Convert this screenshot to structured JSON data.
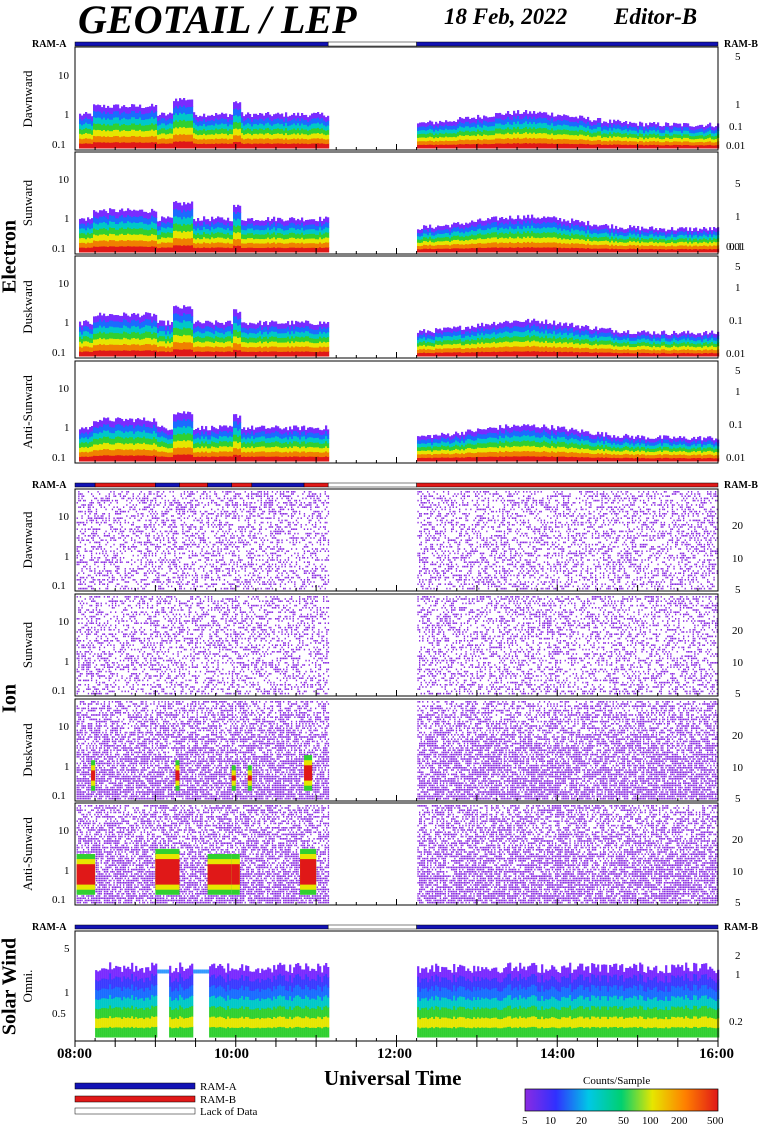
{
  "header": {
    "title": "GEOTAIL / LEP",
    "date": "18 Feb, 2022",
    "editor": "Editor-B"
  },
  "ram_labels": {
    "a": "RAM-A",
    "b": "RAM-B"
  },
  "groups": {
    "electron": "Electron",
    "ion": "Ion",
    "solar_wind": "Solar Wind"
  },
  "x_axis": {
    "title": "Universal Time",
    "ticks": [
      "08:00",
      "10:00",
      "12:00",
      "14:00",
      "16:00"
    ]
  },
  "legend": {
    "ram_a": "RAM-A",
    "ram_b": "RAM-B",
    "lack": "Lack of Data",
    "colors": {
      "ram_a": "#1212b4",
      "ram_b": "#e01818",
      "lack": "#ffffff"
    }
  },
  "colorbar": {
    "title": "Counts/Sample",
    "ticks": [
      "5",
      "10",
      "20",
      "50",
      "100",
      "200",
      "500"
    ]
  },
  "chart_data": {
    "type": "heatmap",
    "x_range_hours": [
      8,
      16
    ],
    "data_gap": [
      11.15,
      12.25
    ],
    "ram_bars": {
      "electron": [
        {
          "from": 8,
          "to": 11.15,
          "mode": "RAM-A"
        },
        {
          "from": 11.15,
          "to": 12.25,
          "mode": "Lack of Data"
        },
        {
          "from": 12.25,
          "to": 16,
          "mode": "RAM-A"
        }
      ],
      "ion": [
        {
          "from": 8,
          "to": 8.25,
          "mode": "RAM-A"
        },
        {
          "from": 8.25,
          "to": 9.0,
          "mode": "RAM-B"
        },
        {
          "from": 9.0,
          "to": 9.3,
          "mode": "RAM-A"
        },
        {
          "from": 9.3,
          "to": 9.65,
          "mode": "RAM-B"
        },
        {
          "from": 9.65,
          "to": 9.95,
          "mode": "RAM-A"
        },
        {
          "from": 9.95,
          "to": 10.2,
          "mode": "RAM-B"
        },
        {
          "from": 10.2,
          "to": 10.85,
          "mode": "RAM-A"
        },
        {
          "from": 10.85,
          "to": 11.15,
          "mode": "RAM-B"
        },
        {
          "from": 11.15,
          "to": 12.25,
          "mode": "Lack of Data"
        },
        {
          "from": 12.25,
          "to": 16,
          "mode": "RAM-B"
        }
      ],
      "solar_wind": [
        {
          "from": 8,
          "to": 11.15,
          "mode": "RAM-A"
        },
        {
          "from": 11.15,
          "to": 12.25,
          "mode": "Lack of Data"
        },
        {
          "from": 12.25,
          "to": 16,
          "mode": "RAM-A"
        }
      ]
    },
    "panels": [
      {
        "label": "Dawnward",
        "left_ticks": [
          "10",
          "1",
          "0.1"
        ],
        "right_ticks": [
          "5",
          "1",
          "0.1",
          "0.01"
        ]
      },
      {
        "label": "Sunward",
        "left_ticks": [
          "10",
          "1",
          "0.1"
        ],
        "right_ticks": [
          "5",
          "1",
          "0.1",
          "0.01"
        ]
      },
      {
        "label": "Duskward",
        "left_ticks": [
          "10",
          "1",
          "0.1"
        ],
        "right_ticks": [
          "5",
          "1",
          "0.1",
          "0.01"
        ]
      },
      {
        "label": "Anti-Sunward",
        "left_ticks": [
          "10",
          "1",
          "0.1"
        ],
        "right_ticks": [
          "5",
          "1",
          "0.1",
          "0.01"
        ]
      },
      {
        "label": "Dawnward",
        "left_ticks": [
          "10",
          "1",
          "0.1"
        ],
        "right_ticks": [
          "20",
          "10",
          "5"
        ]
      },
      {
        "label": "Sunward",
        "left_ticks": [
          "10",
          "1",
          "0.1"
        ],
        "right_ticks": [
          "20",
          "10",
          "5"
        ]
      },
      {
        "label": "Duskward",
        "left_ticks": [
          "10",
          "1",
          "0.1"
        ],
        "right_ticks": [
          "20",
          "10",
          "5"
        ]
      },
      {
        "label": "Anti-Sunward",
        "left_ticks": [
          "10",
          "1",
          "0.1"
        ],
        "right_ticks": [
          "20",
          "10",
          "5"
        ]
      },
      {
        "label": "Omni.",
        "left_ticks": [
          "5",
          "1",
          "0.5"
        ],
        "right_ticks": [
          "2",
          "1",
          "0.2"
        ]
      }
    ]
  }
}
